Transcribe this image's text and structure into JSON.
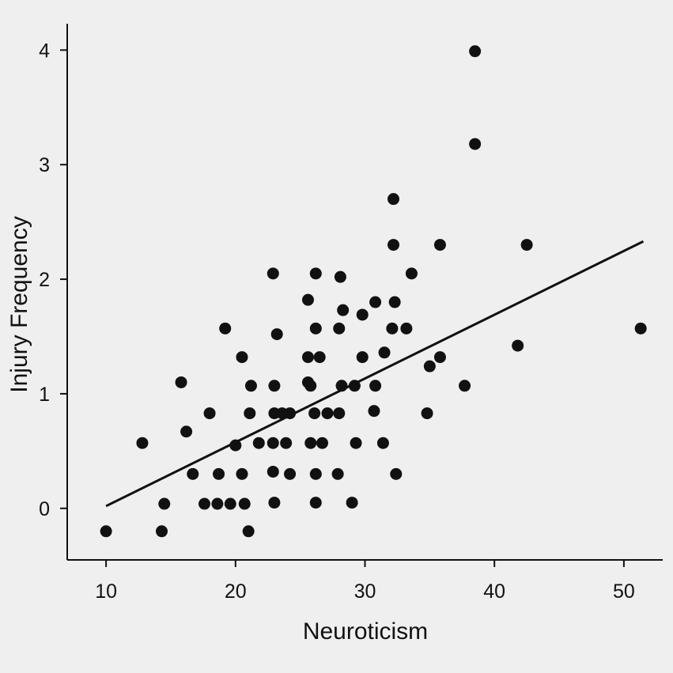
{
  "chart_data": {
    "type": "scatter",
    "title": "",
    "xlabel": "Neuroticism",
    "ylabel": "Injury Frequency",
    "xlim": [
      7,
      53
    ],
    "ylim": [
      -0.45,
      4.23
    ],
    "xticks": [
      10,
      20,
      30,
      40,
      50
    ],
    "yticks": [
      0,
      1,
      2,
      3,
      4
    ],
    "grid": false,
    "legend": "none",
    "colors": {
      "background": "#efefef",
      "points": "#111111",
      "axes": "#111111"
    },
    "series": [
      {
        "values": [
          [
            10,
            -0.2
          ],
          [
            12.8,
            0.57
          ],
          [
            14.3,
            -0.2
          ],
          [
            14.5,
            0.04
          ],
          [
            15.8,
            1.1
          ],
          [
            16.2,
            0.67
          ],
          [
            16.7,
            0.3
          ],
          [
            17.6,
            0.04
          ],
          [
            18.0,
            0.83
          ],
          [
            18.6,
            0.04
          ],
          [
            18.7,
            0.3
          ],
          [
            19.2,
            1.57
          ],
          [
            19.6,
            0.04
          ],
          [
            20.0,
            0.55
          ],
          [
            20.5,
            0.3
          ],
          [
            20.5,
            1.32
          ],
          [
            20.7,
            0.04
          ],
          [
            21.0,
            -0.2
          ],
          [
            21.1,
            0.83
          ],
          [
            21.2,
            1.07
          ],
          [
            21.8,
            0.57
          ],
          [
            22.9,
            0.57
          ],
          [
            22.9,
            2.05
          ],
          [
            22.9,
            0.32
          ],
          [
            23.0,
            0.83
          ],
          [
            23.0,
            1.07
          ],
          [
            23.0,
            0.05
          ],
          [
            23.2,
            1.52
          ],
          [
            23.6,
            0.83
          ],
          [
            23.9,
            0.57
          ],
          [
            24.2,
            0.83
          ],
          [
            24.2,
            0.3
          ],
          [
            25.6,
            1.1
          ],
          [
            25.6,
            1.32
          ],
          [
            25.6,
            1.82
          ],
          [
            25.8,
            0.57
          ],
          [
            25.8,
            1.07
          ],
          [
            26.1,
            0.83
          ],
          [
            26.2,
            1.57
          ],
          [
            26.2,
            2.05
          ],
          [
            26.2,
            0.3
          ],
          [
            26.2,
            0.05
          ],
          [
            26.5,
            1.32
          ],
          [
            26.7,
            0.57
          ],
          [
            27.1,
            0.83
          ],
          [
            27.9,
            0.3
          ],
          [
            28.0,
            1.57
          ],
          [
            28.0,
            0.83
          ],
          [
            28.1,
            2.02
          ],
          [
            28.2,
            1.07
          ],
          [
            28.3,
            1.73
          ],
          [
            29.0,
            0.05
          ],
          [
            29.2,
            1.07
          ],
          [
            29.3,
            0.57
          ],
          [
            29.8,
            1.69
          ],
          [
            29.8,
            1.32
          ],
          [
            30.7,
            0.85
          ],
          [
            30.8,
            1.07
          ],
          [
            30.8,
            1.8
          ],
          [
            31.4,
            0.57
          ],
          [
            31.5,
            1.36
          ],
          [
            32.1,
            1.57
          ],
          [
            32.2,
            2.3
          ],
          [
            32.2,
            2.7
          ],
          [
            32.3,
            1.8
          ],
          [
            32.4,
            0.3
          ],
          [
            33.2,
            1.57
          ],
          [
            33.6,
            2.05
          ],
          [
            34.8,
            0.83
          ],
          [
            35.0,
            1.24
          ],
          [
            35.8,
            1.32
          ],
          [
            35.8,
            2.3
          ],
          [
            37.7,
            1.07
          ],
          [
            38.5,
            3.99
          ],
          [
            38.5,
            3.18
          ],
          [
            41.8,
            1.42
          ],
          [
            42.5,
            2.3
          ],
          [
            51.3,
            1.57
          ]
        ]
      }
    ],
    "trendline": {
      "x": [
        10,
        51.5
      ],
      "y": [
        0.02,
        2.33
      ]
    }
  }
}
